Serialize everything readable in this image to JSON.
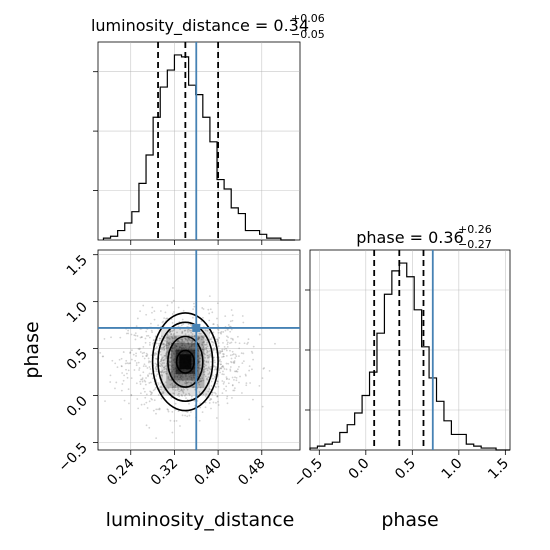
{
  "chart_data": {
    "type": "corner",
    "colors": {
      "truth": "#4682b4",
      "hist": "#000000",
      "grid": "#b0b0b0",
      "scatter": "#808080"
    },
    "panels": [
      {
        "id": "lum_hist",
        "type": "histogram",
        "title": {
          "prefix": "luminosity_distance = 0.34",
          "sup": "+0.06",
          "sub": "−0.05"
        },
        "xlim": [
          0.18,
          0.55
        ],
        "bins": [
          0.19,
          0.203,
          0.216,
          0.229,
          0.242,
          0.255,
          0.268,
          0.281,
          0.294,
          0.307,
          0.32,
          0.333,
          0.346,
          0.359,
          0.372,
          0.385,
          0.398,
          0.411,
          0.424,
          0.437,
          0.45,
          0.463,
          0.476,
          0.489,
          0.502,
          0.515,
          0.528,
          0.541
        ],
        "counts": [
          1,
          2,
          5,
          9,
          15,
          30,
          45,
          65,
          81,
          90,
          98,
          97,
          82,
          77,
          65,
          52,
          32,
          27,
          17,
          14,
          5,
          5,
          3,
          1,
          1,
          0,
          0
        ],
        "quantiles": [
          0.29,
          0.34,
          0.4
        ],
        "truth": 0.36
      },
      {
        "id": "phase_hist",
        "type": "histogram",
        "title": {
          "prefix": "phase = 0.36",
          "sup": "+0.26",
          "sub": "−0.27"
        },
        "xlim": [
          -0.6,
          1.55
        ],
        "bins": [
          -0.6,
          -0.52,
          -0.44,
          -0.36,
          -0.28,
          -0.2,
          -0.12,
          -0.04,
          0.04,
          0.12,
          0.2,
          0.28,
          0.36,
          0.44,
          0.52,
          0.6,
          0.68,
          0.76,
          0.84,
          0.92,
          1.0,
          1.08,
          1.16,
          1.24,
          1.32,
          1.4,
          1.48,
          1.55
        ],
        "counts": [
          1,
          2,
          3,
          4,
          9,
          13,
          19,
          28,
          40,
          60,
          80,
          92,
          96,
          89,
          72,
          53,
          37,
          25,
          15,
          8,
          8,
          3,
          2,
          1,
          1,
          0,
          0
        ],
        "quantiles": [
          0.09,
          0.36,
          0.62
        ],
        "truth": 0.72
      },
      {
        "id": "joint",
        "type": "2d-density",
        "xlim": [
          0.18,
          0.55
        ],
        "ylim": [
          -0.58,
          1.55
        ],
        "truth": [
          0.36,
          0.72
        ],
        "center": [
          0.34,
          0.36
        ],
        "contour_levels": [
          "0.5",
          "1.0",
          "1.5",
          "2.0"
        ],
        "contour_radii": [
          [
            0.016,
            0.12
          ],
          [
            0.032,
            0.27
          ],
          [
            0.05,
            0.42
          ],
          [
            0.06,
            0.52
          ]
        ]
      }
    ],
    "axes": {
      "lum_x_ticks": [
        "0.24",
        "0.32",
        "0.40",
        "0.48"
      ],
      "lum_x_tick_values": [
        0.24,
        0.32,
        0.4,
        0.48
      ],
      "phase_y_ticks": [
        "−0.5",
        "0.0",
        "0.5",
        "1.0",
        "1.5"
      ],
      "phase_y_tick_values": [
        -0.5,
        0.0,
        0.5,
        1.0,
        1.5
      ],
      "phase_x_ticks": [
        "−0.5",
        "0.0",
        "0.5",
        "1.0",
        "1.5"
      ],
      "phase_x_tick_values": [
        -0.5,
        0.0,
        0.5,
        1.0,
        1.5
      ],
      "xlabel_left": "luminosity_distance",
      "xlabel_right": "phase",
      "ylabel": "phase"
    }
  }
}
